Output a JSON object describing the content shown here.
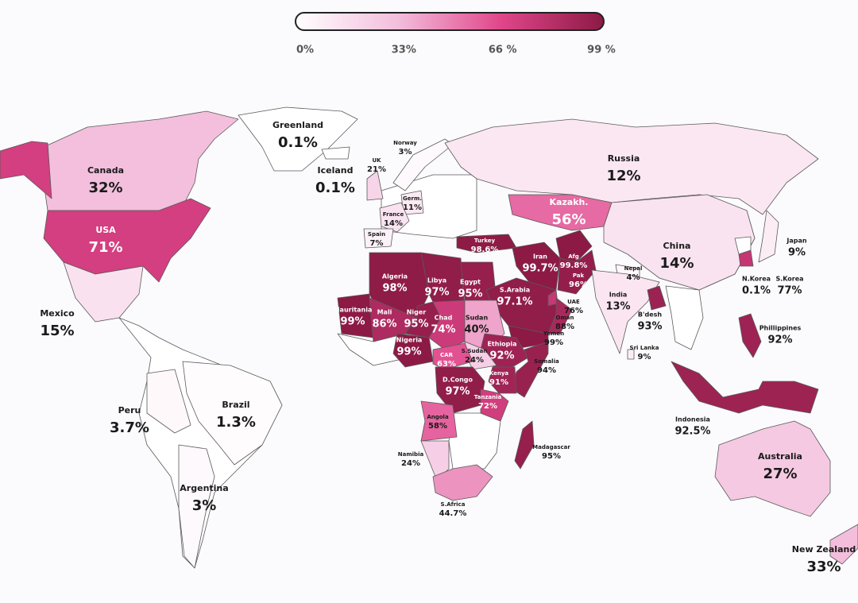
{
  "chart_data": {
    "type": "map",
    "categories": [
      "Greenland",
      "Norway",
      "UK",
      "Iceland",
      "Canada",
      "Russia",
      "Germ.",
      "France",
      "Kazakh.",
      "Spain",
      "Turkey",
      "USA",
      "Japan",
      "China",
      "Iran",
      "Afg",
      "Pak",
      "Nepal",
      "N.Korea",
      "S.Korea",
      "Algeria",
      "Libya",
      "Egypt",
      "S.Arabia",
      "India",
      "UAE",
      "Mauritania",
      "Mali",
      "Niger",
      "Chad",
      "Sudan",
      "B'desh",
      "Oman",
      "Mexico",
      "Phillippines",
      "Yemen",
      "Nigeria",
      "Ethiopia",
      "S.Sudan",
      "Sri Lanka",
      "CAR",
      "Somalia",
      "Kenya",
      "D.Congo",
      "Peru",
      "Brazil",
      "Tanzania",
      "Indonesia",
      "Angola",
      "Madagascar",
      "Namibia",
      "Australia",
      "Argentina",
      "S.Africa",
      "New Zealand"
    ],
    "values": [
      0.1,
      3,
      21,
      0.1,
      32,
      12,
      11,
      14,
      56,
      7,
      98.6,
      71,
      9,
      14,
      99.7,
      99.8,
      96,
      4,
      0.1,
      77,
      98,
      97,
      95,
      97.1,
      13,
      76,
      99,
      86,
      95,
      74,
      40,
      93,
      88,
      15,
      92,
      99,
      99,
      92,
      24,
      9,
      63,
      94,
      91,
      97,
      3.7,
      1.3,
      72,
      92.5,
      58,
      95,
      24,
      27,
      3,
      44.7,
      33
    ],
    "value_labels": [
      "0.1%",
      "3%",
      "21%",
      "0.1%",
      "32%",
      "12%",
      "11%",
      "14%",
      "56%",
      "7%",
      "98.6%",
      "71%",
      "9%",
      "14%",
      "99.7%",
      "99.8%",
      "96%",
      "4%",
      "0.1%",
      "77%",
      "98%",
      "97%",
      "95%",
      "97.1%",
      "13%",
      "76%",
      "99%",
      "86%",
      "95%",
      "74%",
      "40%",
      "93%",
      "88%",
      "15%",
      "92%",
      "99%",
      "99%",
      "92%",
      "24%",
      "9%",
      "63%",
      "94%",
      "91%",
      "97%",
      "3.7%",
      "1.3%",
      "72%",
      "92.5%",
      "58%",
      "95%",
      "24%",
      "27%",
      "3%",
      "44.7%",
      "33%"
    ],
    "colorscale": [
      "#ffffff",
      "#f3bddc",
      "#e0468a",
      "#8c1a45"
    ],
    "clim": [
      0,
      99
    ],
    "cticks": [
      {
        "value": 0,
        "label": "0%"
      },
      {
        "value": 33,
        "label": "33%"
      },
      {
        "value": 66,
        "label": "66 %"
      },
      {
        "value": 99,
        "label": "99 %"
      }
    ]
  }
}
